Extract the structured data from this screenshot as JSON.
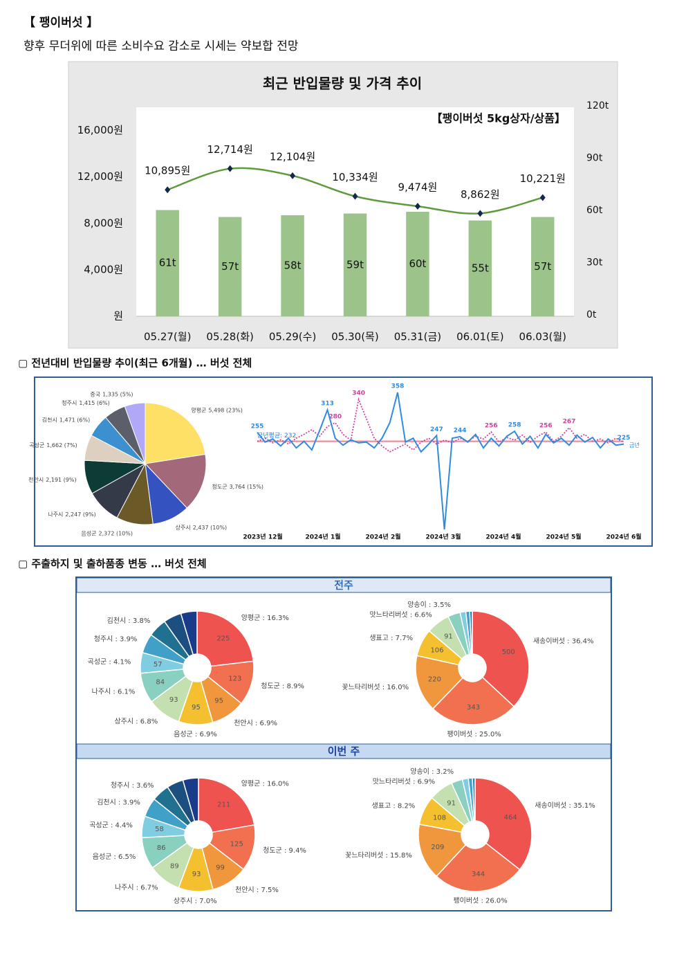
{
  "header": {
    "title": "【 팽이버섯 】",
    "subtitle": "향후 무더위에 따른 소비수요 감소로 시세는 약보합 전망"
  },
  "sections": [
    "▢ 전년대비 반입물량 추이(최근 6개월) … 버섯 전체",
    "▢ 주출하지 및 출하품종 변동 … 버섯 전체"
  ],
  "panels": [
    "전주",
    "이번 주"
  ],
  "chart_data": [
    {
      "type": "combo",
      "title": "최근 반입물량 및 가격 추이",
      "annotation": "【팽이버섯 5kg상자/상품】",
      "categories": [
        "05.27(월)",
        "05.28(화)",
        "05.29(수)",
        "05.30(목)",
        "05.31(금)",
        "06.01(토)",
        "06.03(월)"
      ],
      "ylim": [
        0,
        18000
      ],
      "yticks": [
        {
          "value": 0,
          "label": "원"
        },
        {
          "value": 4000,
          "label": "4,000원"
        },
        {
          "value": 8000,
          "label": "8,000원"
        },
        {
          "value": 12000,
          "label": "12,000원"
        },
        {
          "value": 16000,
          "label": "16,000원"
        }
      ],
      "y2lim": [
        0,
        120
      ],
      "y2ticks": [
        {
          "value": 0,
          "label": "0t"
        },
        {
          "value": 30,
          "label": "30t"
        },
        {
          "value": 60,
          "label": "60t"
        },
        {
          "value": 90,
          "label": "90t"
        },
        {
          "value": 120,
          "label": "120t"
        }
      ],
      "series": [
        {
          "type": "bar",
          "axis": "y2",
          "color": "#9cc38a",
          "values": [
            61,
            57,
            58,
            59,
            60,
            55,
            57
          ],
          "value_labels": [
            "61t",
            "57t",
            "58t",
            "59t",
            "60t",
            "55t",
            "57t"
          ]
        },
        {
          "type": "line",
          "axis": "y",
          "color": "#5e9b3c",
          "marker_color": "#14284e",
          "values": [
            10895,
            12714,
            12104,
            10334,
            9474,
            8862,
            10221
          ],
          "value_labels": [
            "10,895원",
            "12,714원",
            "12,104원",
            "10,334원",
            "9,474원",
            "8,862원",
            "10,221원"
          ]
        }
      ]
    },
    {
      "type": "pie",
      "categories": [
        "양평군",
        "청도군",
        "상주시",
        "음성군",
        "나주시",
        "천안시",
        "곡성군",
        "김천시",
        "청주시",
        "중국"
      ],
      "values": [
        5498,
        3764,
        2437,
        2372,
        2247,
        2191,
        1662,
        1471,
        1415,
        1335
      ],
      "value_labels": [
        "5,498 (23%)",
        "3,764 (15%)",
        "2,437 (10%)",
        "2,372 (10%)",
        "2,247 (9%)",
        "2,191 (9%)",
        "1,662 (7%)",
        "1,471 (6%)",
        "1,415 (6%)",
        "1,335 (5%)"
      ],
      "colors": [
        "#ffe066",
        "#a3687a",
        "#3553c0",
        "#6b5a28",
        "#343a48",
        "#0d3b36",
        "#ddd0c0",
        "#3d90d0",
        "#5a5f6a",
        "#b2a8f8"
      ]
    },
    {
      "type": "line",
      "xtick_labels": [
        "2023년 12월",
        "2024년 1월",
        "2024년 2월",
        "2024년 3월",
        "2024년 4월",
        "2024년 5월",
        "2024년 6월"
      ],
      "average": 232,
      "average_label": "금년평균: 232",
      "series": [
        {
          "name": "금년",
          "color": "#2f8be0",
          "values": [
            255,
            230,
            238,
            220,
            240,
            215,
            232,
            210,
            260,
            313,
            240,
            222,
            236,
            228,
            230,
            215,
            240,
            280,
            358,
            230,
            240,
            205,
            225,
            247,
            5,
            240,
            244,
            230,
            250,
            215,
            240,
            220,
            245,
            258,
            225,
            245,
            215,
            250,
            228,
            240,
            222,
            248,
            230,
            242,
            215,
            238,
            222,
            225
          ],
          "value_labels": [
            "255",
            null,
            null,
            null,
            null,
            null,
            null,
            null,
            null,
            "313",
            null,
            null,
            null,
            null,
            null,
            null,
            null,
            null,
            "358",
            null,
            null,
            null,
            null,
            "247",
            null,
            null,
            "244",
            null,
            null,
            null,
            null,
            null,
            null,
            "258",
            null,
            null,
            null,
            null,
            null,
            null,
            null,
            null,
            null,
            null,
            null,
            null,
            null,
            "225"
          ]
        },
        {
          "color": "#d040a0",
          "dashed": true,
          "values": [
            232,
            240,
            228,
            236,
            225,
            240,
            250,
            262,
            245,
            270,
            280,
            250,
            235,
            340,
            290,
            240,
            220,
            205,
            215,
            225,
            210,
            230,
            240,
            225,
            235,
            228,
            240,
            232,
            245,
            238,
            256,
            230,
            242,
            235,
            248,
            230,
            245,
            256,
            232,
            245,
            267,
            240,
            250,
            232,
            238,
            228,
            240,
            230
          ],
          "value_labels": [
            null,
            null,
            null,
            null,
            null,
            null,
            null,
            null,
            null,
            null,
            "280",
            null,
            null,
            "340",
            null,
            null,
            null,
            null,
            null,
            null,
            null,
            null,
            null,
            null,
            null,
            null,
            null,
            null,
            null,
            null,
            "256",
            null,
            null,
            null,
            null,
            null,
            null,
            "256",
            null,
            null,
            "267",
            null,
            null,
            null,
            null,
            null,
            null,
            null
          ]
        }
      ]
    },
    {
      "type": "donut",
      "categories": [
        "양평군 : 16.3%",
        "청도군 : 8.9%",
        "천안시 : 6.9%",
        "음성군 : 6.9%",
        "상주시 : 6.8%",
        "나주시 : 6.1%",
        "곡성군 : 4.1%",
        "청주시 : 3.9%",
        "김천시 : 3.8%",
        null,
        null
      ],
      "values": [
        225,
        123,
        95,
        95,
        93,
        84,
        57,
        54,
        52,
        50,
        45
      ],
      "value_labels": [
        "225",
        "123",
        "95",
        "95",
        "93",
        "84",
        "57",
        null,
        null,
        null,
        null
      ],
      "colors": [
        "#ef5350",
        "#f07050",
        "#f0963c",
        "#f5c030",
        "#c5e0b0",
        "#8ad0c0",
        "#80cce0",
        "#40a0c8",
        "#207090",
        "#1c4f80",
        "#1a3a8a"
      ]
    },
    {
      "type": "donut",
      "categories": [
        "새송이버섯 : 36.4%",
        "팽이버섯 : 25.0%",
        "꽃느타리버섯 : 16.0%",
        "생표고 : 7.7%",
        "맛느타리버섯 : 6.6%",
        "양송이 : 3.5%",
        null,
        null,
        null
      ],
      "values": [
        500,
        343,
        220,
        106,
        91,
        48,
        22,
        15,
        10
      ],
      "value_labels": [
        "500",
        "343",
        "220",
        "106",
        "91",
        null,
        null,
        null,
        null
      ],
      "colors": [
        "#ef5350",
        "#f07050",
        "#f0963c",
        "#f5c030",
        "#c5e0b0",
        "#8ad0c0",
        "#80cce0",
        "#40a0c8",
        "#2080b0"
      ]
    },
    {
      "type": "donut",
      "categories": [
        "양평군 : 16.0%",
        "청도군 : 9.4%",
        "천안시 : 7.5%",
        "상주시 : 7.0%",
        "나주시 : 6.7%",
        "음성군 : 6.5%",
        "곡성군 : 4.4%",
        "김천시 : 3.9%",
        "청주시 : 3.6%",
        null,
        null
      ],
      "values": [
        211,
        125,
        99,
        93,
        89,
        86,
        58,
        52,
        48,
        45,
        42
      ],
      "value_labels": [
        "211",
        "125",
        "99",
        "93",
        "89",
        "86",
        "58",
        null,
        null,
        null,
        null
      ],
      "colors": [
        "#ef5350",
        "#f07050",
        "#f0963c",
        "#f5c030",
        "#c5e0b0",
        "#8ad0c0",
        "#80cce0",
        "#40a0c8",
        "#207090",
        "#1c4f80",
        "#1a3a8a"
      ]
    },
    {
      "type": "donut",
      "categories": [
        "새송이버섯 : 35.1%",
        "팽이버섯 : 26.0%",
        "꽃느타리버섯 : 15.8%",
        "생표고 : 8.2%",
        "맛느타리버섯 : 6.9%",
        "양송이 : 3.2%",
        null,
        null,
        null
      ],
      "values": [
        464,
        344,
        209,
        108,
        91,
        42,
        22,
        15,
        10
      ],
      "value_labels": [
        "464",
        "344",
        "209",
        "108",
        "91",
        null,
        null,
        null,
        null
      ],
      "colors": [
        "#ef5350",
        "#f07050",
        "#f0963c",
        "#f5c030",
        "#c5e0b0",
        "#8ad0c0",
        "#80cce0",
        "#40a0c8",
        "#2080b0"
      ]
    }
  ]
}
